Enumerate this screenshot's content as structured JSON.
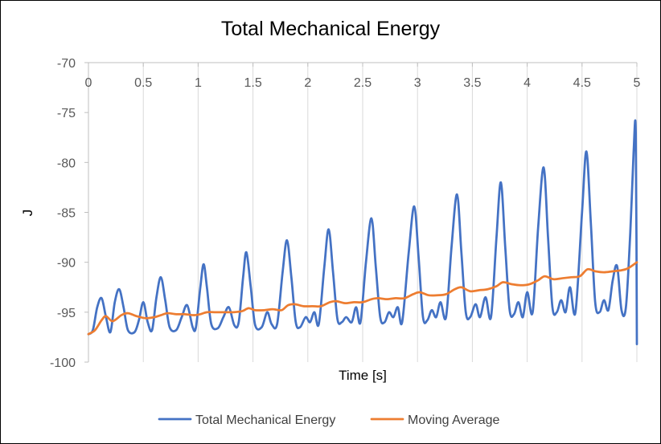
{
  "chart_data": {
    "type": "line",
    "title": "Total Mechanical Energy",
    "xlabel": "Time [s]",
    "ylabel": "J",
    "xlim": [
      0,
      5
    ],
    "ylim": [
      -100,
      -70
    ],
    "x_ticks": [
      "0",
      "0.5",
      "1",
      "1.5",
      "2",
      "2.5",
      "3",
      "3.5",
      "4",
      "4.5",
      "5"
    ],
    "y_ticks": [
      "-70",
      "-75",
      "-80",
      "-85",
      "-90",
      "-95",
      "-100"
    ],
    "x_tick_values": [
      0,
      0.5,
      1,
      1.5,
      2,
      2.5,
      3,
      3.5,
      4,
      4.5,
      5
    ],
    "y_tick_values": [
      -70,
      -75,
      -80,
      -85,
      -90,
      -95,
      -100
    ],
    "x_axis_position": "top",
    "grid": {
      "vertical": true,
      "horizontal": false
    },
    "legend_position": "bottom",
    "series": [
      {
        "name": "Total Mechanical Energy",
        "color": "#4472C4",
        "points": [
          [
            0,
            -97.2
          ],
          [
            0.04,
            -96.8
          ],
          [
            0.08,
            -94.5
          ],
          [
            0.12,
            -93.6
          ],
          [
            0.16,
            -95.5
          ],
          [
            0.2,
            -97.0
          ],
          [
            0.24,
            -94.0
          ],
          [
            0.28,
            -92.7
          ],
          [
            0.32,
            -94.5
          ],
          [
            0.36,
            -96.8
          ],
          [
            0.42,
            -97.0
          ],
          [
            0.46,
            -95.8
          ],
          [
            0.5,
            -94.0
          ],
          [
            0.54,
            -96.0
          ],
          [
            0.58,
            -96.8
          ],
          [
            0.62,
            -93.5
          ],
          [
            0.66,
            -91.5
          ],
          [
            0.7,
            -93.8
          ],
          [
            0.74,
            -96.5
          ],
          [
            0.8,
            -96.8
          ],
          [
            0.85,
            -95.5
          ],
          [
            0.9,
            -94.3
          ],
          [
            0.95,
            -96.5
          ],
          [
            0.98,
            -96.5
          ],
          [
            1.02,
            -92.5
          ],
          [
            1.05,
            -90.2
          ],
          [
            1.08,
            -92.5
          ],
          [
            1.12,
            -96.2
          ],
          [
            1.18,
            -96.6
          ],
          [
            1.23,
            -95.5
          ],
          [
            1.28,
            -94.5
          ],
          [
            1.33,
            -96.3
          ],
          [
            1.37,
            -96.0
          ],
          [
            1.41,
            -91.5
          ],
          [
            1.44,
            -89.0
          ],
          [
            1.48,
            -92.5
          ],
          [
            1.52,
            -96.3
          ],
          [
            1.58,
            -96.5
          ],
          [
            1.63,
            -95.0
          ],
          [
            1.67,
            -96.2
          ],
          [
            1.72,
            -96.2
          ],
          [
            1.77,
            -91.0
          ],
          [
            1.81,
            -87.8
          ],
          [
            1.85,
            -91.5
          ],
          [
            1.89,
            -96.0
          ],
          [
            1.93,
            -96.5
          ],
          [
            1.98,
            -95.5
          ],
          [
            2.02,
            -96.0
          ],
          [
            2.06,
            -95.0
          ],
          [
            2.1,
            -96.2
          ],
          [
            2.15,
            -90.5
          ],
          [
            2.19,
            -86.7
          ],
          [
            2.23,
            -91.0
          ],
          [
            2.27,
            -95.7
          ],
          [
            2.31,
            -96.0
          ],
          [
            2.35,
            -95.5
          ],
          [
            2.4,
            -96.0
          ],
          [
            2.44,
            -94.5
          ],
          [
            2.48,
            -96.0
          ],
          [
            2.53,
            -90.0
          ],
          [
            2.58,
            -85.6
          ],
          [
            2.62,
            -90.5
          ],
          [
            2.66,
            -95.5
          ],
          [
            2.7,
            -96.0
          ],
          [
            2.74,
            -95.0
          ],
          [
            2.78,
            -95.5
          ],
          [
            2.82,
            -94.5
          ],
          [
            2.86,
            -96.0
          ],
          [
            2.92,
            -89.0
          ],
          [
            2.97,
            -84.4
          ],
          [
            3.01,
            -89.5
          ],
          [
            3.05,
            -95.5
          ],
          [
            3.09,
            -95.8
          ],
          [
            3.13,
            -94.8
          ],
          [
            3.17,
            -95.5
          ],
          [
            3.21,
            -94.0
          ],
          [
            3.26,
            -95.5
          ],
          [
            3.31,
            -88.5
          ],
          [
            3.36,
            -83.2
          ],
          [
            3.4,
            -89.0
          ],
          [
            3.44,
            -95.0
          ],
          [
            3.48,
            -95.5
          ],
          [
            3.53,
            -94.2
          ],
          [
            3.57,
            -95.5
          ],
          [
            3.62,
            -93.5
          ],
          [
            3.67,
            -95.5
          ],
          [
            3.72,
            -87.5
          ],
          [
            3.76,
            -82.0
          ],
          [
            3.8,
            -88.5
          ],
          [
            3.84,
            -94.8
          ],
          [
            3.88,
            -95.2
          ],
          [
            3.92,
            -94.0
          ],
          [
            3.96,
            -95.5
          ],
          [
            4.0,
            -93.0
          ],
          [
            4.05,
            -95.0
          ],
          [
            4.1,
            -86.5
          ],
          [
            4.15,
            -80.5
          ],
          [
            4.19,
            -87.5
          ],
          [
            4.23,
            -94.5
          ],
          [
            4.27,
            -95.0
          ],
          [
            4.31,
            -93.8
          ],
          [
            4.35,
            -95.0
          ],
          [
            4.39,
            -92.5
          ],
          [
            4.44,
            -95.0
          ],
          [
            4.5,
            -85.0
          ],
          [
            4.54,
            -78.9
          ],
          [
            4.58,
            -86.0
          ],
          [
            4.62,
            -94.0
          ],
          [
            4.66,
            -95.0
          ],
          [
            4.7,
            -93.8
          ],
          [
            4.74,
            -94.8
          ],
          [
            4.78,
            -91.8
          ],
          [
            4.82,
            -90.4
          ],
          [
            4.86,
            -94.8
          ],
          [
            4.9,
            -94.5
          ],
          [
            4.94,
            -87.0
          ],
          [
            4.97,
            -79.0
          ],
          [
            4.99,
            -77.1
          ],
          [
            5.0,
            -98.2
          ]
        ]
      },
      {
        "name": "Moving Average",
        "color": "#ED7D31",
        "points": [
          [
            0,
            -97.2
          ],
          [
            0.06,
            -96.8
          ],
          [
            0.12,
            -95.8
          ],
          [
            0.16,
            -95.4
          ],
          [
            0.22,
            -95.9
          ],
          [
            0.3,
            -95.3
          ],
          [
            0.36,
            -95.1
          ],
          [
            0.44,
            -95.4
          ],
          [
            0.52,
            -95.6
          ],
          [
            0.6,
            -95.5
          ],
          [
            0.66,
            -95.3
          ],
          [
            0.72,
            -95.1
          ],
          [
            0.8,
            -95.2
          ],
          [
            0.88,
            -95.2
          ],
          [
            0.96,
            -95.3
          ],
          [
            1.02,
            -95.2
          ],
          [
            1.08,
            -95.0
          ],
          [
            1.16,
            -95.0
          ],
          [
            1.24,
            -95.0
          ],
          [
            1.32,
            -95.0
          ],
          [
            1.4,
            -94.9
          ],
          [
            1.46,
            -94.6
          ],
          [
            1.52,
            -94.8
          ],
          [
            1.6,
            -94.8
          ],
          [
            1.68,
            -94.7
          ],
          [
            1.76,
            -94.8
          ],
          [
            1.82,
            -94.3
          ],
          [
            1.88,
            -94.2
          ],
          [
            1.96,
            -94.4
          ],
          [
            2.04,
            -94.4
          ],
          [
            2.12,
            -94.4
          ],
          [
            2.2,
            -94.0
          ],
          [
            2.26,
            -93.9
          ],
          [
            2.34,
            -94.1
          ],
          [
            2.42,
            -94.0
          ],
          [
            2.5,
            -94.0
          ],
          [
            2.58,
            -93.7
          ],
          [
            2.64,
            -93.6
          ],
          [
            2.72,
            -93.7
          ],
          [
            2.8,
            -93.6
          ],
          [
            2.88,
            -93.6
          ],
          [
            2.96,
            -93.2
          ],
          [
            3.02,
            -93.0
          ],
          [
            3.1,
            -93.3
          ],
          [
            3.18,
            -93.3
          ],
          [
            3.26,
            -93.2
          ],
          [
            3.34,
            -92.7
          ],
          [
            3.4,
            -92.5
          ],
          [
            3.48,
            -92.9
          ],
          [
            3.56,
            -92.8
          ],
          [
            3.64,
            -92.7
          ],
          [
            3.72,
            -92.4
          ],
          [
            3.78,
            -92.0
          ],
          [
            3.86,
            -92.2
          ],
          [
            3.94,
            -92.3
          ],
          [
            4.02,
            -92.2
          ],
          [
            4.1,
            -91.8
          ],
          [
            4.16,
            -91.4
          ],
          [
            4.24,
            -91.7
          ],
          [
            4.32,
            -91.6
          ],
          [
            4.4,
            -91.5
          ],
          [
            4.48,
            -91.4
          ],
          [
            4.55,
            -90.7
          ],
          [
            4.62,
            -90.9
          ],
          [
            4.7,
            -91.0
          ],
          [
            4.78,
            -90.9
          ],
          [
            4.86,
            -90.8
          ],
          [
            4.92,
            -90.6
          ],
          [
            5.0,
            -90.0
          ]
        ]
      }
    ]
  }
}
